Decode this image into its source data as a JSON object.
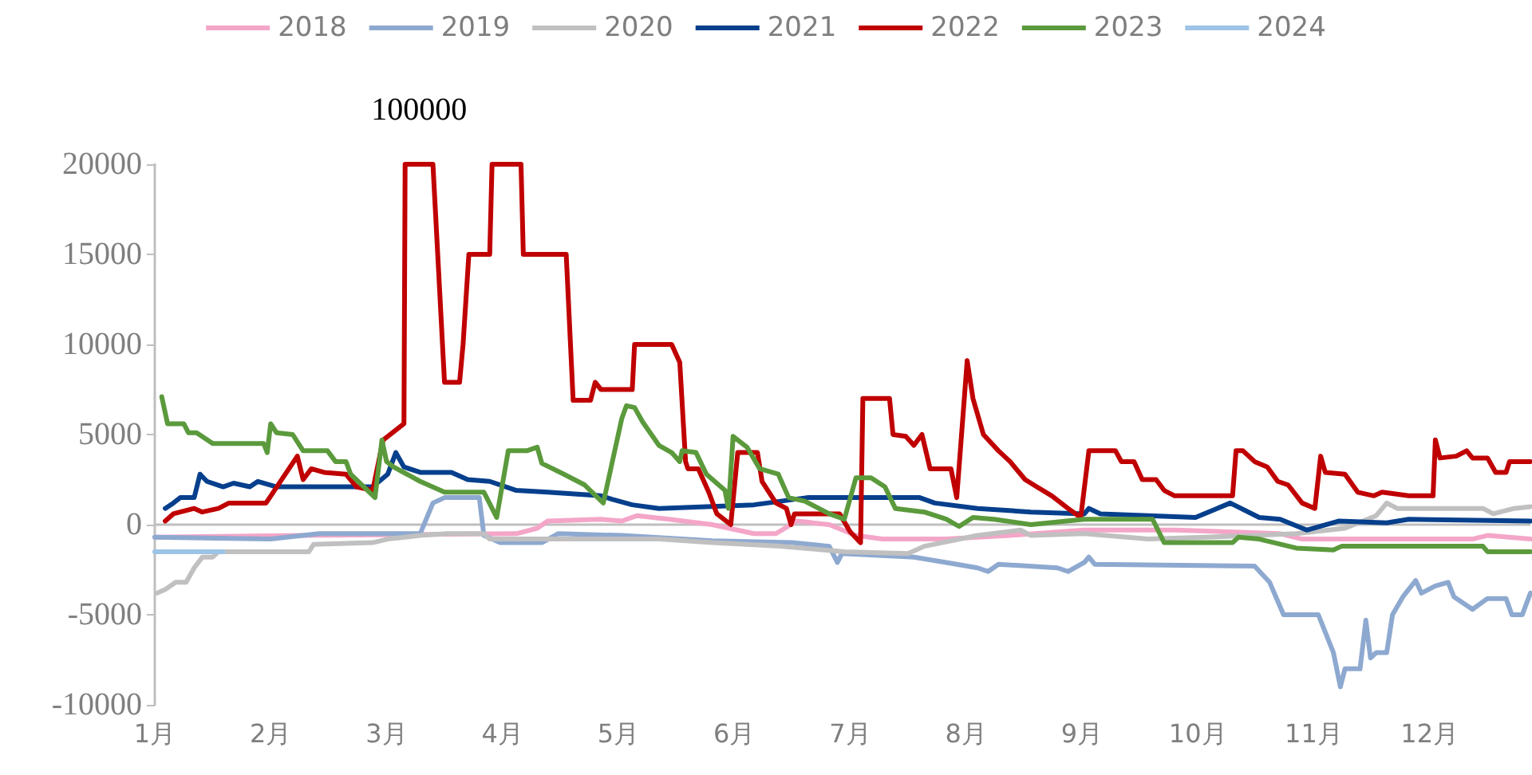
{
  "chart_data": {
    "type": "line",
    "legend": "top",
    "grid": false,
    "xlim": [
      1,
      12.87
    ],
    "ylim": [
      -10000,
      20000
    ],
    "xticks": [
      {
        "value": 1,
        "label": "1月"
      },
      {
        "value": 2,
        "label": "2月"
      },
      {
        "value": 3,
        "label": "3月"
      },
      {
        "value": 4,
        "label": "4月"
      },
      {
        "value": 5,
        "label": "5月"
      },
      {
        "value": 6,
        "label": "6月"
      },
      {
        "value": 7,
        "label": "7月"
      },
      {
        "value": 8,
        "label": "8月"
      },
      {
        "value": 9,
        "label": "9月"
      },
      {
        "value": 10,
        "label": "10月"
      },
      {
        "value": 11,
        "label": "11月"
      },
      {
        "value": 12,
        "label": "12月"
      }
    ],
    "yticks": [
      -10000,
      -5000,
      0,
      5000,
      10000,
      15000,
      20000
    ],
    "ref_lines": [
      {
        "axis": "y",
        "value": 0,
        "color": "#bfbfbf"
      }
    ],
    "annotations": [
      {
        "text": "100000",
        "x": 3.28,
        "y": 20000
      }
    ],
    "series": [
      {
        "name": "2018",
        "color": "#f4a6c8",
        "x": [
          1,
          2.28,
          4.12,
          4.3,
          4.39,
          4.85,
          5.03,
          5.16,
          5.44,
          5.81,
          6.17,
          6.36,
          6.54,
          6.82,
          7.05,
          7.28,
          7.83,
          8.38,
          9.02,
          9.8,
          10.71,
          10.9,
          12.37,
          12.5,
          12.87
        ],
        "values": [
          -700,
          -600,
          -500,
          -200,
          200,
          300,
          200,
          500,
          300,
          0,
          -500,
          -500,
          200,
          0,
          -600,
          -800,
          -800,
          -600,
          -300,
          -300,
          -500,
          -800,
          -800,
          -600,
          -800
        ]
      },
      {
        "name": "2019",
        "color": "#8ea9d0",
        "x": [
          1,
          2,
          2.42,
          3.29,
          3.4,
          3.5,
          3.8,
          3.84,
          3.98,
          4.34,
          4.48,
          5.03,
          5.81,
          6.5,
          6.82,
          6.89,
          6.93,
          7.55,
          7.83,
          8.1,
          8.19,
          8.28,
          8.79,
          8.88,
          9.02,
          9.06,
          9.11,
          10.49,
          10.62,
          10.74,
          11.04,
          11.17,
          11.23,
          11.27,
          11.4,
          11.45,
          11.49,
          11.54,
          11.63,
          11.68,
          11.77,
          11.88,
          11.93,
          12.05,
          12.16,
          12.21,
          12.37,
          12.5,
          12.66,
          12.71,
          12.8,
          12.87
        ],
        "values": [
          -700,
          -800,
          -500,
          -500,
          1200,
          1500,
          1500,
          -600,
          -1000,
          -1000,
          -500,
          -600,
          -900,
          -1000,
          -1200,
          -2100,
          -1600,
          -1800,
          -2100,
          -2400,
          -2600,
          -2200,
          -2400,
          -2600,
          -2100,
          -1800,
          -2200,
          -2300,
          -3200,
          -5000,
          -5000,
          -7100,
          -9000,
          -8000,
          -8000,
          -5300,
          -7400,
          -7100,
          -7100,
          -5000,
          -4000,
          -3100,
          -3800,
          -3400,
          -3200,
          -4000,
          -4700,
          -4100,
          -4100,
          -5000,
          -5000,
          -3800
        ]
      },
      {
        "name": "2020",
        "color": "#c0c0c0",
        "x": [
          1.02,
          1.09,
          1.18,
          1.27,
          1.34,
          1.41,
          1.5,
          1.55,
          2.33,
          2.37,
          2.88,
          3.01,
          3.29,
          3.52,
          3.84,
          3.89,
          5.03,
          5.35,
          5.81,
          6.4,
          6.95,
          7.5,
          7.64,
          8.1,
          8.47,
          8.56,
          9.02,
          9.57,
          10.49,
          10.85,
          11.27,
          11.54,
          11.63,
          11.72,
          12.46,
          12.55,
          12.73,
          12.87
        ],
        "values": [
          -3800,
          -3600,
          -3200,
          -3200,
          -2400,
          -1800,
          -1800,
          -1500,
          -1500,
          -1100,
          -1000,
          -800,
          -600,
          -500,
          -500,
          -800,
          -800,
          -800,
          -1000,
          -1200,
          -1500,
          -1600,
          -1200,
          -600,
          -300,
          -600,
          -500,
          -800,
          -600,
          -500,
          -200,
          500,
          1200,
          900,
          900,
          600,
          900,
          1000
        ]
      },
      {
        "name": "2021",
        "color": "#063f8c",
        "x": [
          1.09,
          1.16,
          1.22,
          1.34,
          1.39,
          1.45,
          1.59,
          1.68,
          1.82,
          1.89,
          2.05,
          2.88,
          3.01,
          3.08,
          3.15,
          3.29,
          3.56,
          3.7,
          3.89,
          4.12,
          4.39,
          4.85,
          4.95,
          5.12,
          5.35,
          6.17,
          6.63,
          7.6,
          7.73,
          8.1,
          8.56,
          9.02,
          9.06,
          9.16,
          9.98,
          10.28,
          10.53,
          10.71,
          10.94,
          11.22,
          11.63,
          11.82,
          12.87
        ],
        "values": [
          900,
          1200,
          1500,
          1500,
          2800,
          2400,
          2100,
          2300,
          2100,
          2400,
          2100,
          2100,
          2800,
          4000,
          3200,
          2900,
          2900,
          2500,
          2400,
          1900,
          1800,
          1600,
          1400,
          1100,
          900,
          1100,
          1500,
          1500,
          1200,
          900,
          700,
          600,
          900,
          600,
          400,
          1200,
          400,
          300,
          -300,
          200,
          100,
          300,
          200
        ]
      },
      {
        "name": "2022",
        "color": "#c00000",
        "x": [
          1.09,
          1.16,
          1.34,
          1.41,
          1.55,
          1.64,
          1.96,
          2.23,
          2.28,
          2.35,
          2.46,
          2.65,
          2.74,
          2.88,
          2.97,
          3.01,
          3.15,
          3.16,
          3.4,
          3.5,
          3.63,
          3.66,
          3.71,
          3.89,
          3.91,
          4.16,
          4.18,
          4.55,
          4.61,
          4.76,
          4.8,
          4.85,
          5.12,
          5.14,
          5.46,
          5.53,
          5.58,
          5.6,
          5.69,
          5.78,
          5.85,
          5.97,
          6.03,
          6.2,
          6.24,
          6.36,
          6.45,
          6.49,
          6.52,
          6.91,
          7,
          7.09,
          7.11,
          7.34,
          7.37,
          7.48,
          7.55,
          7.62,
          7.69,
          7.87,
          7.92,
          8.01,
          8.06,
          8.15,
          8.28,
          8.38,
          8.51,
          8.61,
          8.74,
          8.88,
          8.99,
          9.06,
          9.29,
          9.34,
          9.45,
          9.52,
          9.64,
          9.71,
          9.8,
          10.3,
          10.33,
          10.39,
          10.49,
          10.6,
          10.69,
          10.78,
          10.9,
          11.01,
          11.06,
          11.1,
          11.27,
          11.38,
          11.52,
          11.59,
          11.82,
          12.03,
          12.05,
          12.09,
          12.23,
          12.32,
          12.37,
          12.5,
          12.57,
          12.66,
          12.69,
          12.87
        ],
        "values": [
          200,
          600,
          900,
          700,
          900,
          1200,
          1200,
          3800,
          2500,
          3100,
          2900,
          2800,
          2100,
          1900,
          4700,
          4900,
          5600,
          20000,
          20000,
          7900,
          7900,
          10000,
          15000,
          15000,
          20000,
          20000,
          15000,
          15000,
          6900,
          6900,
          7900,
          7500,
          7500,
          10000,
          10000,
          9000,
          3500,
          3100,
          3100,
          1800,
          600,
          0,
          4000,
          4000,
          2400,
          1200,
          900,
          0,
          600,
          600,
          -400,
          -1000,
          7000,
          7000,
          5000,
          4900,
          4400,
          5000,
          3100,
          3100,
          1500,
          9100,
          7000,
          5000,
          4100,
          3500,
          2500,
          2100,
          1600,
          900,
          400,
          4100,
          4100,
          3500,
          3500,
          2500,
          2500,
          1900,
          1600,
          1600,
          4100,
          4100,
          3500,
          3200,
          2400,
          2200,
          1200,
          900,
          3800,
          2900,
          2800,
          1800,
          1600,
          1800,
          1600,
          1600,
          4700,
          3700,
          3800,
          4100,
          3700,
          3700,
          2900,
          2900,
          3500,
          3500
        ]
      },
      {
        "name": "2023",
        "color": "#5b9a3c",
        "x": [
          1.06,
          1.11,
          1.25,
          1.29,
          1.36,
          1.5,
          1.94,
          1.97,
          2,
          2.05,
          2.19,
          2.28,
          2.49,
          2.56,
          2.65,
          2.69,
          2.9,
          2.96,
          3,
          3.06,
          3.29,
          3.5,
          3.84,
          3.95,
          4.05,
          4.21,
          4.3,
          4.34,
          4.53,
          4.71,
          4.87,
          5.03,
          5.07,
          5.14,
          5.21,
          5.35,
          5.46,
          5.53,
          5.55,
          5.67,
          5.76,
          5.92,
          5.95,
          5.99,
          6.11,
          6.22,
          6.38,
          6.47,
          6.61,
          6.82,
          6.95,
          7.05,
          7.18,
          7.3,
          7.39,
          7.64,
          7.83,
          7.94,
          8.06,
          8.24,
          8.56,
          9.02,
          9.61,
          9.71,
          10.3,
          10.35,
          10.53,
          10.85,
          11.17,
          11.24,
          12.46,
          12.5,
          12.87
        ],
        "values": [
          7100,
          5600,
          5600,
          5100,
          5100,
          4500,
          4500,
          4000,
          5600,
          5100,
          5000,
          4100,
          4100,
          3500,
          3500,
          2800,
          1500,
          4700,
          3500,
          3200,
          2400,
          1800,
          1800,
          400,
          4100,
          4100,
          4300,
          3400,
          2800,
          2200,
          1200,
          5900,
          6600,
          6500,
          5700,
          4400,
          4000,
          3500,
          4100,
          4000,
          2800,
          1900,
          900,
          4900,
          4300,
          3100,
          2800,
          1500,
          1300,
          600,
          300,
          2600,
          2600,
          2100,
          900,
          700,
          300,
          -100,
          400,
          300,
          0,
          300,
          300,
          -1000,
          -1000,
          -700,
          -800,
          -1300,
          -1400,
          -1200,
          -1200,
          -1500,
          -1500
        ]
      },
      {
        "name": "2024",
        "color": "#9dc3e6",
        "x": [
          1,
          1.59
        ],
        "values": [
          -1500,
          -1500
        ]
      }
    ]
  }
}
